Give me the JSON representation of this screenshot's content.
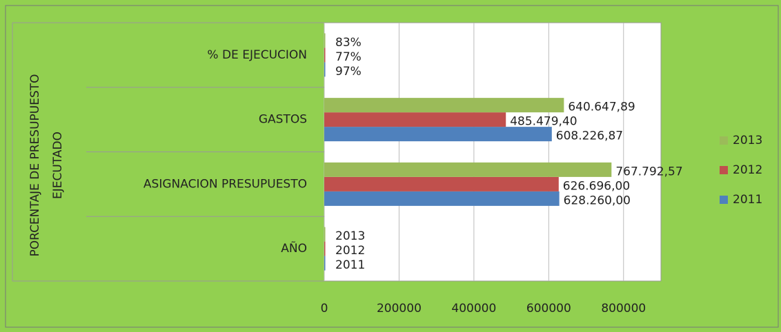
{
  "chart_data": {
    "type": "hbar",
    "y_label": "PORCENTAJE DE PRESUPUESTO EJECUTADO",
    "categories": [
      "AÑO",
      "ASIGNACION PRESUPUESTO",
      "GASTOS",
      "% DE EJECUCION"
    ],
    "series": [
      {
        "name": "2011",
        "color": "#4f81bd",
        "values": [
          2011,
          628260,
          608226.87,
          97
        ],
        "value_labels": [
          "2011",
          "628.260,00",
          "608.226,87",
          "97%"
        ]
      },
      {
        "name": "2012",
        "color": "#c0504d",
        "values": [
          2012,
          626696,
          485479.4,
          77
        ],
        "value_labels": [
          "2012",
          "626.696,00",
          "485.479,40",
          "77%"
        ]
      },
      {
        "name": "2013",
        "color": "#9bbb59",
        "values": [
          2013,
          767792.57,
          640647.89,
          83
        ],
        "value_labels": [
          "2013",
          "767.792,57",
          "640.647,89",
          "83%"
        ]
      }
    ],
    "xlim": [
      0,
      900000
    ],
    "xticks": [
      0,
      200000,
      400000,
      600000,
      800000
    ],
    "grid": true,
    "legend": "right"
  }
}
